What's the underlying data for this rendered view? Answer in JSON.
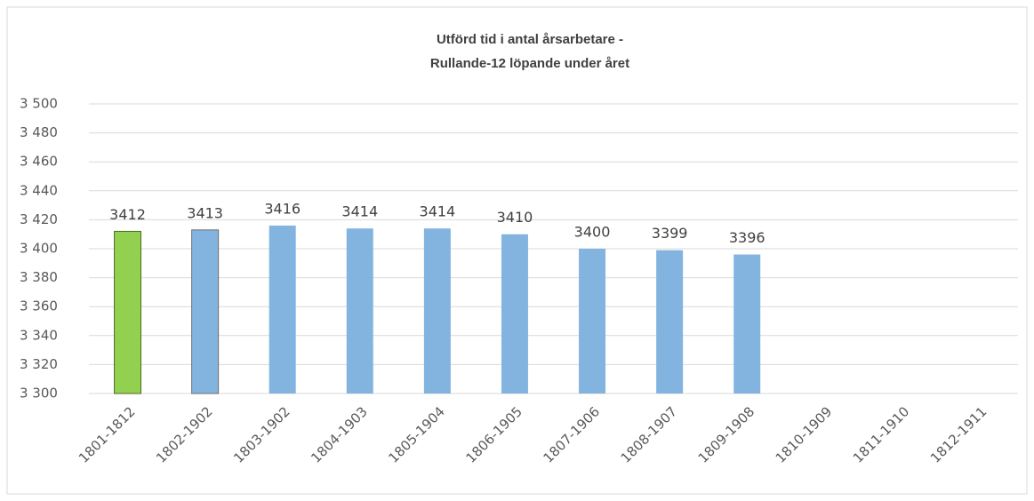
{
  "chart_data": {
    "type": "bar",
    "title": [
      "Utförd tid i antal årsarbetare -",
      "Rullande-12 löpande under året"
    ],
    "categories": [
      "1801-1812",
      "1802-1902",
      "1803-1902",
      "1804-1903",
      "1805-1904",
      "1806-1905",
      "1807-1906",
      "1808-1907",
      "1809-1908",
      "1810-1909",
      "1811-1910",
      "1812-1911"
    ],
    "values": [
      3412,
      3413,
      3416,
      3414,
      3414,
      3410,
      3400,
      3399,
      3396,
      null,
      null,
      null
    ],
    "colors": [
      "#92d050",
      "#83b4e0",
      "#83b4e0",
      "#83b4e0",
      "#83b4e0",
      "#83b4e0",
      "#83b4e0",
      "#83b4e0",
      "#83b4e0",
      null,
      null,
      null
    ],
    "edgecolors": [
      "#4f6b28",
      "#6e6e6e",
      null,
      null,
      null,
      null,
      null,
      null,
      null,
      null,
      null,
      null
    ],
    "ylim": [
      3300,
      3500
    ],
    "yticks": [
      {
        "value": 3300,
        "label": "3 300"
      },
      {
        "value": 3320,
        "label": "3 320"
      },
      {
        "value": 3340,
        "label": "3 340"
      },
      {
        "value": 3360,
        "label": "3 360"
      },
      {
        "value": 3380,
        "label": "3 380"
      },
      {
        "value": 3400,
        "label": "3 400"
      },
      {
        "value": 3420,
        "label": "3 420"
      },
      {
        "value": 3440,
        "label": "3 440"
      },
      {
        "value": 3460,
        "label": "3 460"
      },
      {
        "value": 3480,
        "label": "3 480"
      },
      {
        "value": 3500,
        "label": "3 500"
      }
    ],
    "grid": true
  }
}
